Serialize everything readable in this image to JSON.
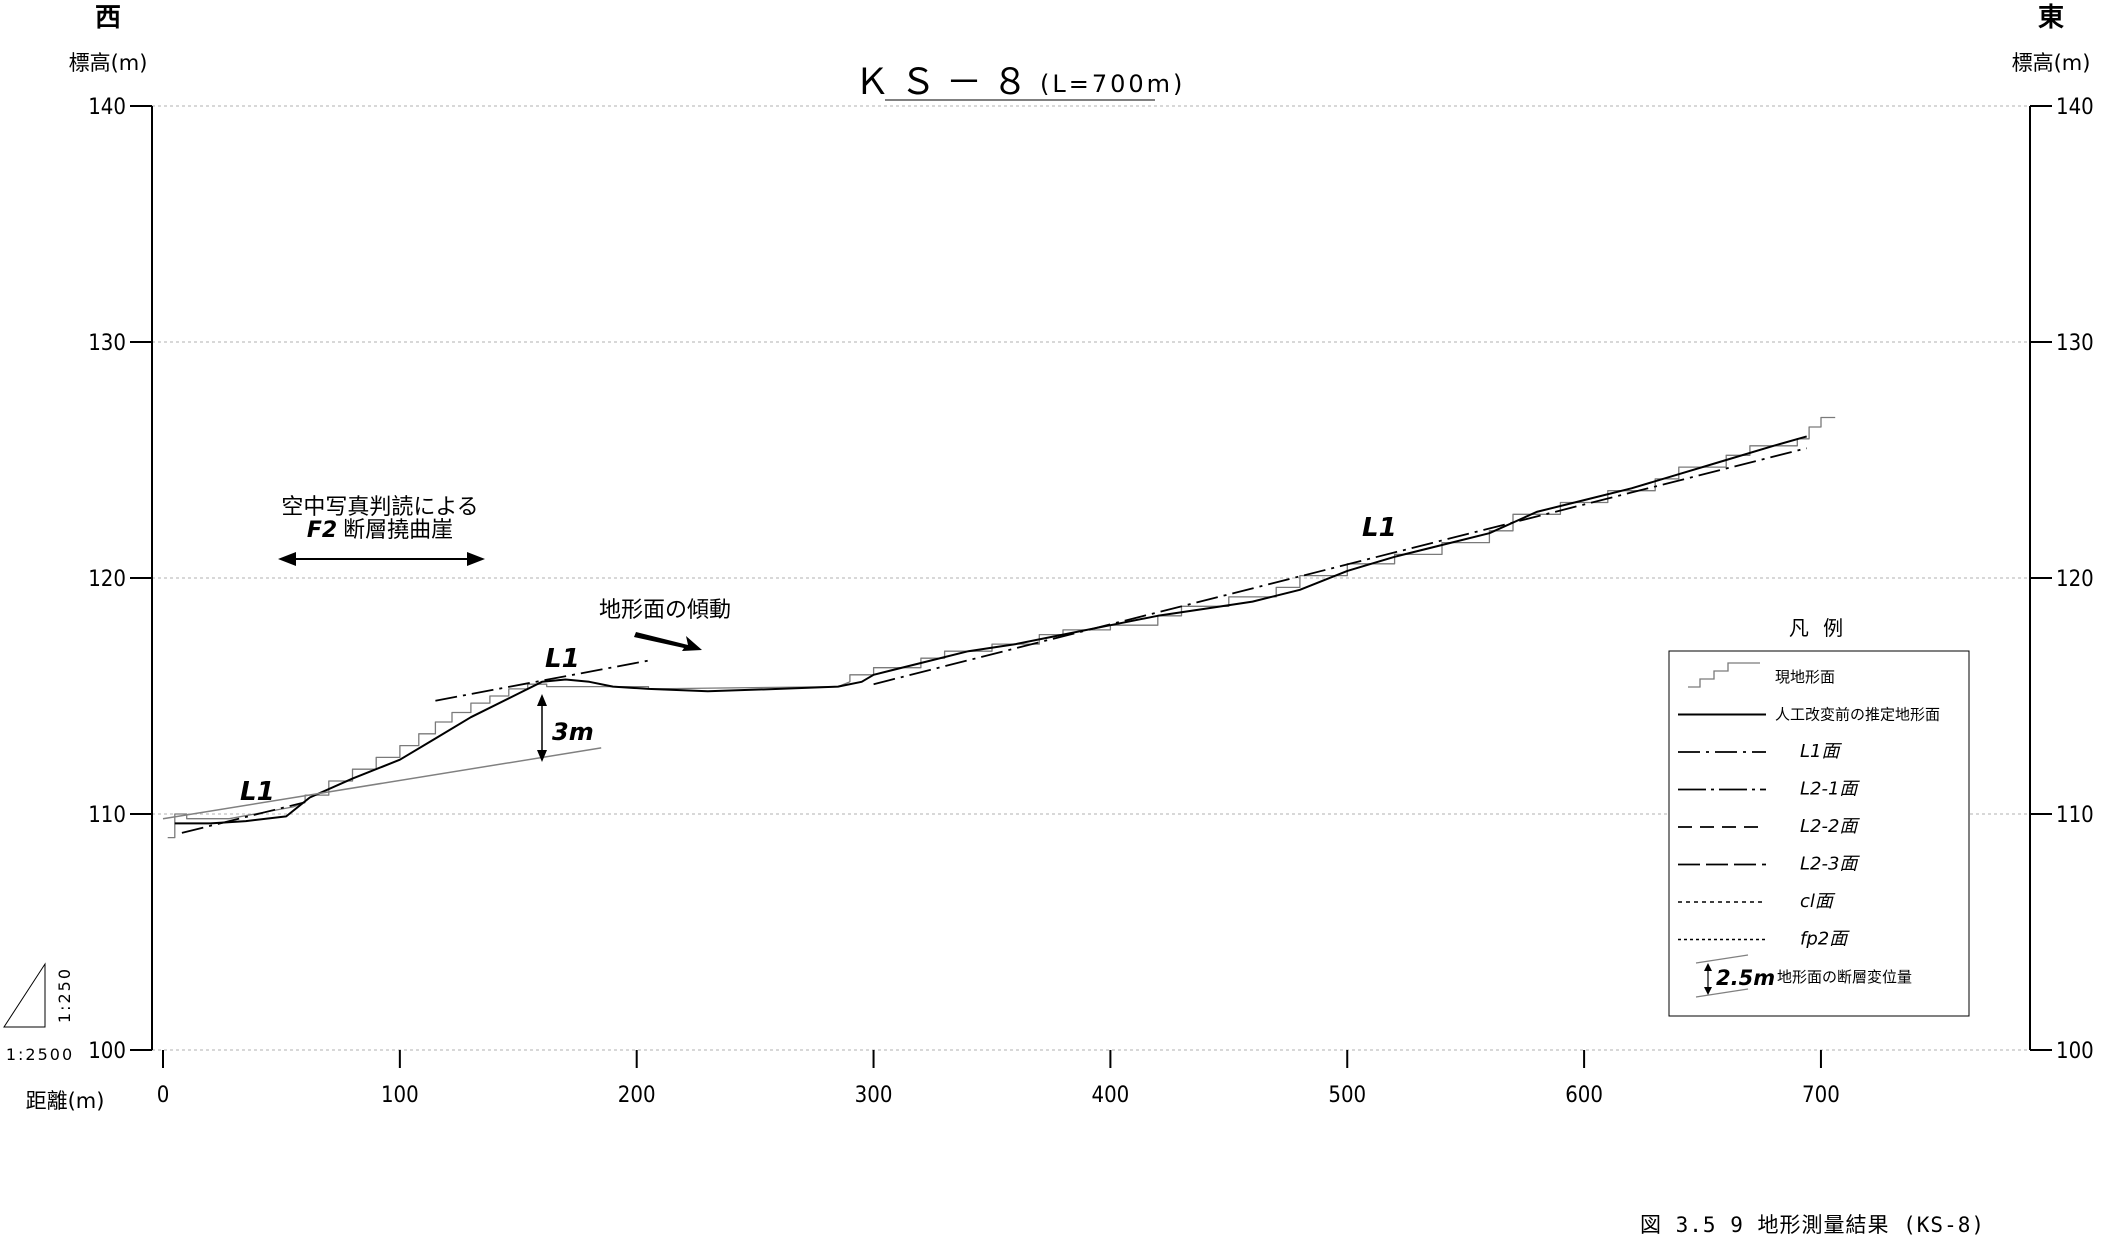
{
  "chart_data": {
    "type": "line",
    "title": "ＫＳ－８",
    "subtitle": "(L=700m)",
    "xlabel": "距離(m)",
    "ylabel_left": "標高(m)",
    "ylabel_right": "標高(m)",
    "west_label": "西",
    "east_label": "東",
    "xlim": [
      0,
      800
    ],
    "ylim": [
      100,
      140
    ],
    "x_ticks": [
      0,
      100,
      200,
      300,
      400,
      500,
      600,
      700
    ],
    "y_ticks": [
      100,
      110,
      120,
      130,
      140
    ],
    "grid": true,
    "scale_vertical": "1:250",
    "scale_horizontal": "1:2500",
    "caption": "図 3.5 9  地形測量結果 (KS-8)",
    "annotations": {
      "fault_text_line1": "空中写真判読による",
      "fault_text_line2_bold": "F2",
      "fault_text_line2": "断層撓曲崖",
      "tilt_text": "地形面の傾動",
      "displacement": "3m",
      "l1_labels": [
        "L1",
        "L1",
        "L1"
      ]
    },
    "series": [
      {
        "name": "現地形面",
        "style": "stepped-gray",
        "x": [
          2,
          5,
          5,
          10,
          10,
          28,
          55,
          55,
          60,
          60,
          70,
          70,
          80,
          80,
          90,
          90,
          100,
          100,
          108,
          108,
          115,
          115,
          122,
          122,
          130,
          130,
          138,
          138,
          146,
          146,
          154,
          154,
          162,
          162,
          205,
          205,
          285,
          290,
          290,
          300,
          300,
          320,
          320,
          330,
          330,
          350,
          350,
          370,
          370,
          380,
          380,
          400,
          400,
          420,
          420,
          430,
          430,
          450,
          450,
          470,
          470,
          480,
          480,
          500,
          500,
          520,
          520,
          540,
          540,
          560,
          560,
          570,
          570,
          590,
          590,
          610,
          610,
          630,
          630,
          640,
          640,
          660,
          660,
          670,
          670,
          690,
          690,
          695,
          695,
          700,
          700,
          706
        ],
        "y": [
          109.0,
          109.0,
          110.0,
          110.0,
          109.8,
          109.8,
          110.3,
          110.3,
          110.5,
          110.8,
          110.8,
          111.4,
          111.4,
          111.9,
          111.9,
          112.4,
          112.4,
          112.9,
          112.9,
          113.4,
          113.4,
          113.9,
          113.9,
          114.3,
          114.3,
          114.7,
          114.7,
          115.0,
          115.0,
          115.3,
          115.3,
          115.5,
          115.5,
          115.4,
          115.4,
          115.3,
          115.4,
          115.6,
          115.9,
          115.9,
          116.2,
          116.2,
          116.6,
          116.6,
          116.9,
          116.9,
          117.2,
          117.2,
          117.6,
          117.6,
          117.8,
          117.8,
          118.0,
          118.0,
          118.4,
          118.4,
          118.8,
          118.8,
          119.2,
          119.2,
          119.6,
          119.6,
          120.1,
          120.1,
          120.6,
          120.6,
          121.0,
          121.0,
          121.5,
          121.5,
          122.0,
          122.0,
          122.7,
          122.7,
          123.2,
          123.2,
          123.7,
          123.7,
          124.2,
          124.2,
          124.7,
          124.7,
          125.2,
          125.2,
          125.6,
          125.6,
          125.9,
          125.9,
          126.4,
          126.4,
          126.8,
          126.8
        ]
      },
      {
        "name": "人工改変前の推定地形面",
        "style": "solid",
        "x": [
          5,
          20,
          35,
          52,
          62,
          80,
          100,
          115,
          130,
          150,
          160,
          170,
          180,
          190,
          205,
          230,
          260,
          285,
          295,
          300,
          320,
          340,
          360,
          380,
          400,
          420,
          440,
          460,
          480,
          500,
          520,
          540,
          560,
          580,
          600,
          620,
          640,
          660,
          680,
          694
        ],
        "y": [
          109.6,
          109.6,
          109.7,
          109.9,
          110.7,
          111.5,
          112.3,
          113.2,
          114.1,
          115.1,
          115.6,
          115.7,
          115.6,
          115.4,
          115.3,
          115.2,
          115.3,
          115.4,
          115.6,
          115.9,
          116.4,
          116.9,
          117.2,
          117.6,
          118.0,
          118.4,
          118.7,
          119.0,
          119.5,
          120.3,
          120.9,
          121.4,
          121.9,
          122.8,
          123.3,
          123.8,
          124.4,
          125.0,
          125.6,
          126.0
        ]
      },
      {
        "name": "L1面",
        "style": "dash-dot",
        "segments": [
          {
            "x": [
              8,
              60
            ],
            "y": [
              109.2,
              110.5
            ]
          },
          {
            "x": [
              115,
              205
            ],
            "y": [
              114.8,
              116.5
            ]
          },
          {
            "x": [
              300,
              694
            ],
            "y": [
              115.5,
              125.5
            ]
          }
        ]
      },
      {
        "name": "L2-1面",
        "style": "dash-dot-long",
        "values": []
      },
      {
        "name": "L2-2面",
        "style": "dashed",
        "values": []
      },
      {
        "name": "L2-3面",
        "style": "long-dash",
        "values": []
      },
      {
        "name": "cl面",
        "style": "dotted",
        "values": []
      },
      {
        "name": "fp2面",
        "style": "dotted-fine",
        "values": []
      },
      {
        "name": "地形面の断層変位量",
        "style": "gray-thin",
        "x": [
          0,
          185
        ],
        "y": [
          109.8,
          112.8
        ]
      }
    ],
    "legend": {
      "title": "凡  例",
      "placement": "right",
      "items": [
        {
          "label": "現地形面",
          "style": "stepped-gray"
        },
        {
          "label": "人工改変前の推定地形面",
          "style": "solid"
        },
        {
          "label": "L1面",
          "style": "dash-dot"
        },
        {
          "label": "L2-1面",
          "style": "dash-dot-long"
        },
        {
          "label": "L2-2面",
          "style": "dashed"
        },
        {
          "label": "L2-3面",
          "style": "long-dash"
        },
        {
          "label": "cl面",
          "style": "dotted"
        },
        {
          "label": "fp2面",
          "style": "dotted-fine"
        },
        {
          "label": "地形面の断層変位量",
          "style": "displacement",
          "sample_value": "2.5m"
        }
      ]
    }
  },
  "colors": {
    "axis": "#000000",
    "grid": "#b0b0b0",
    "stepped": "#7a7a7a",
    "displacement_line": "#808080"
  }
}
